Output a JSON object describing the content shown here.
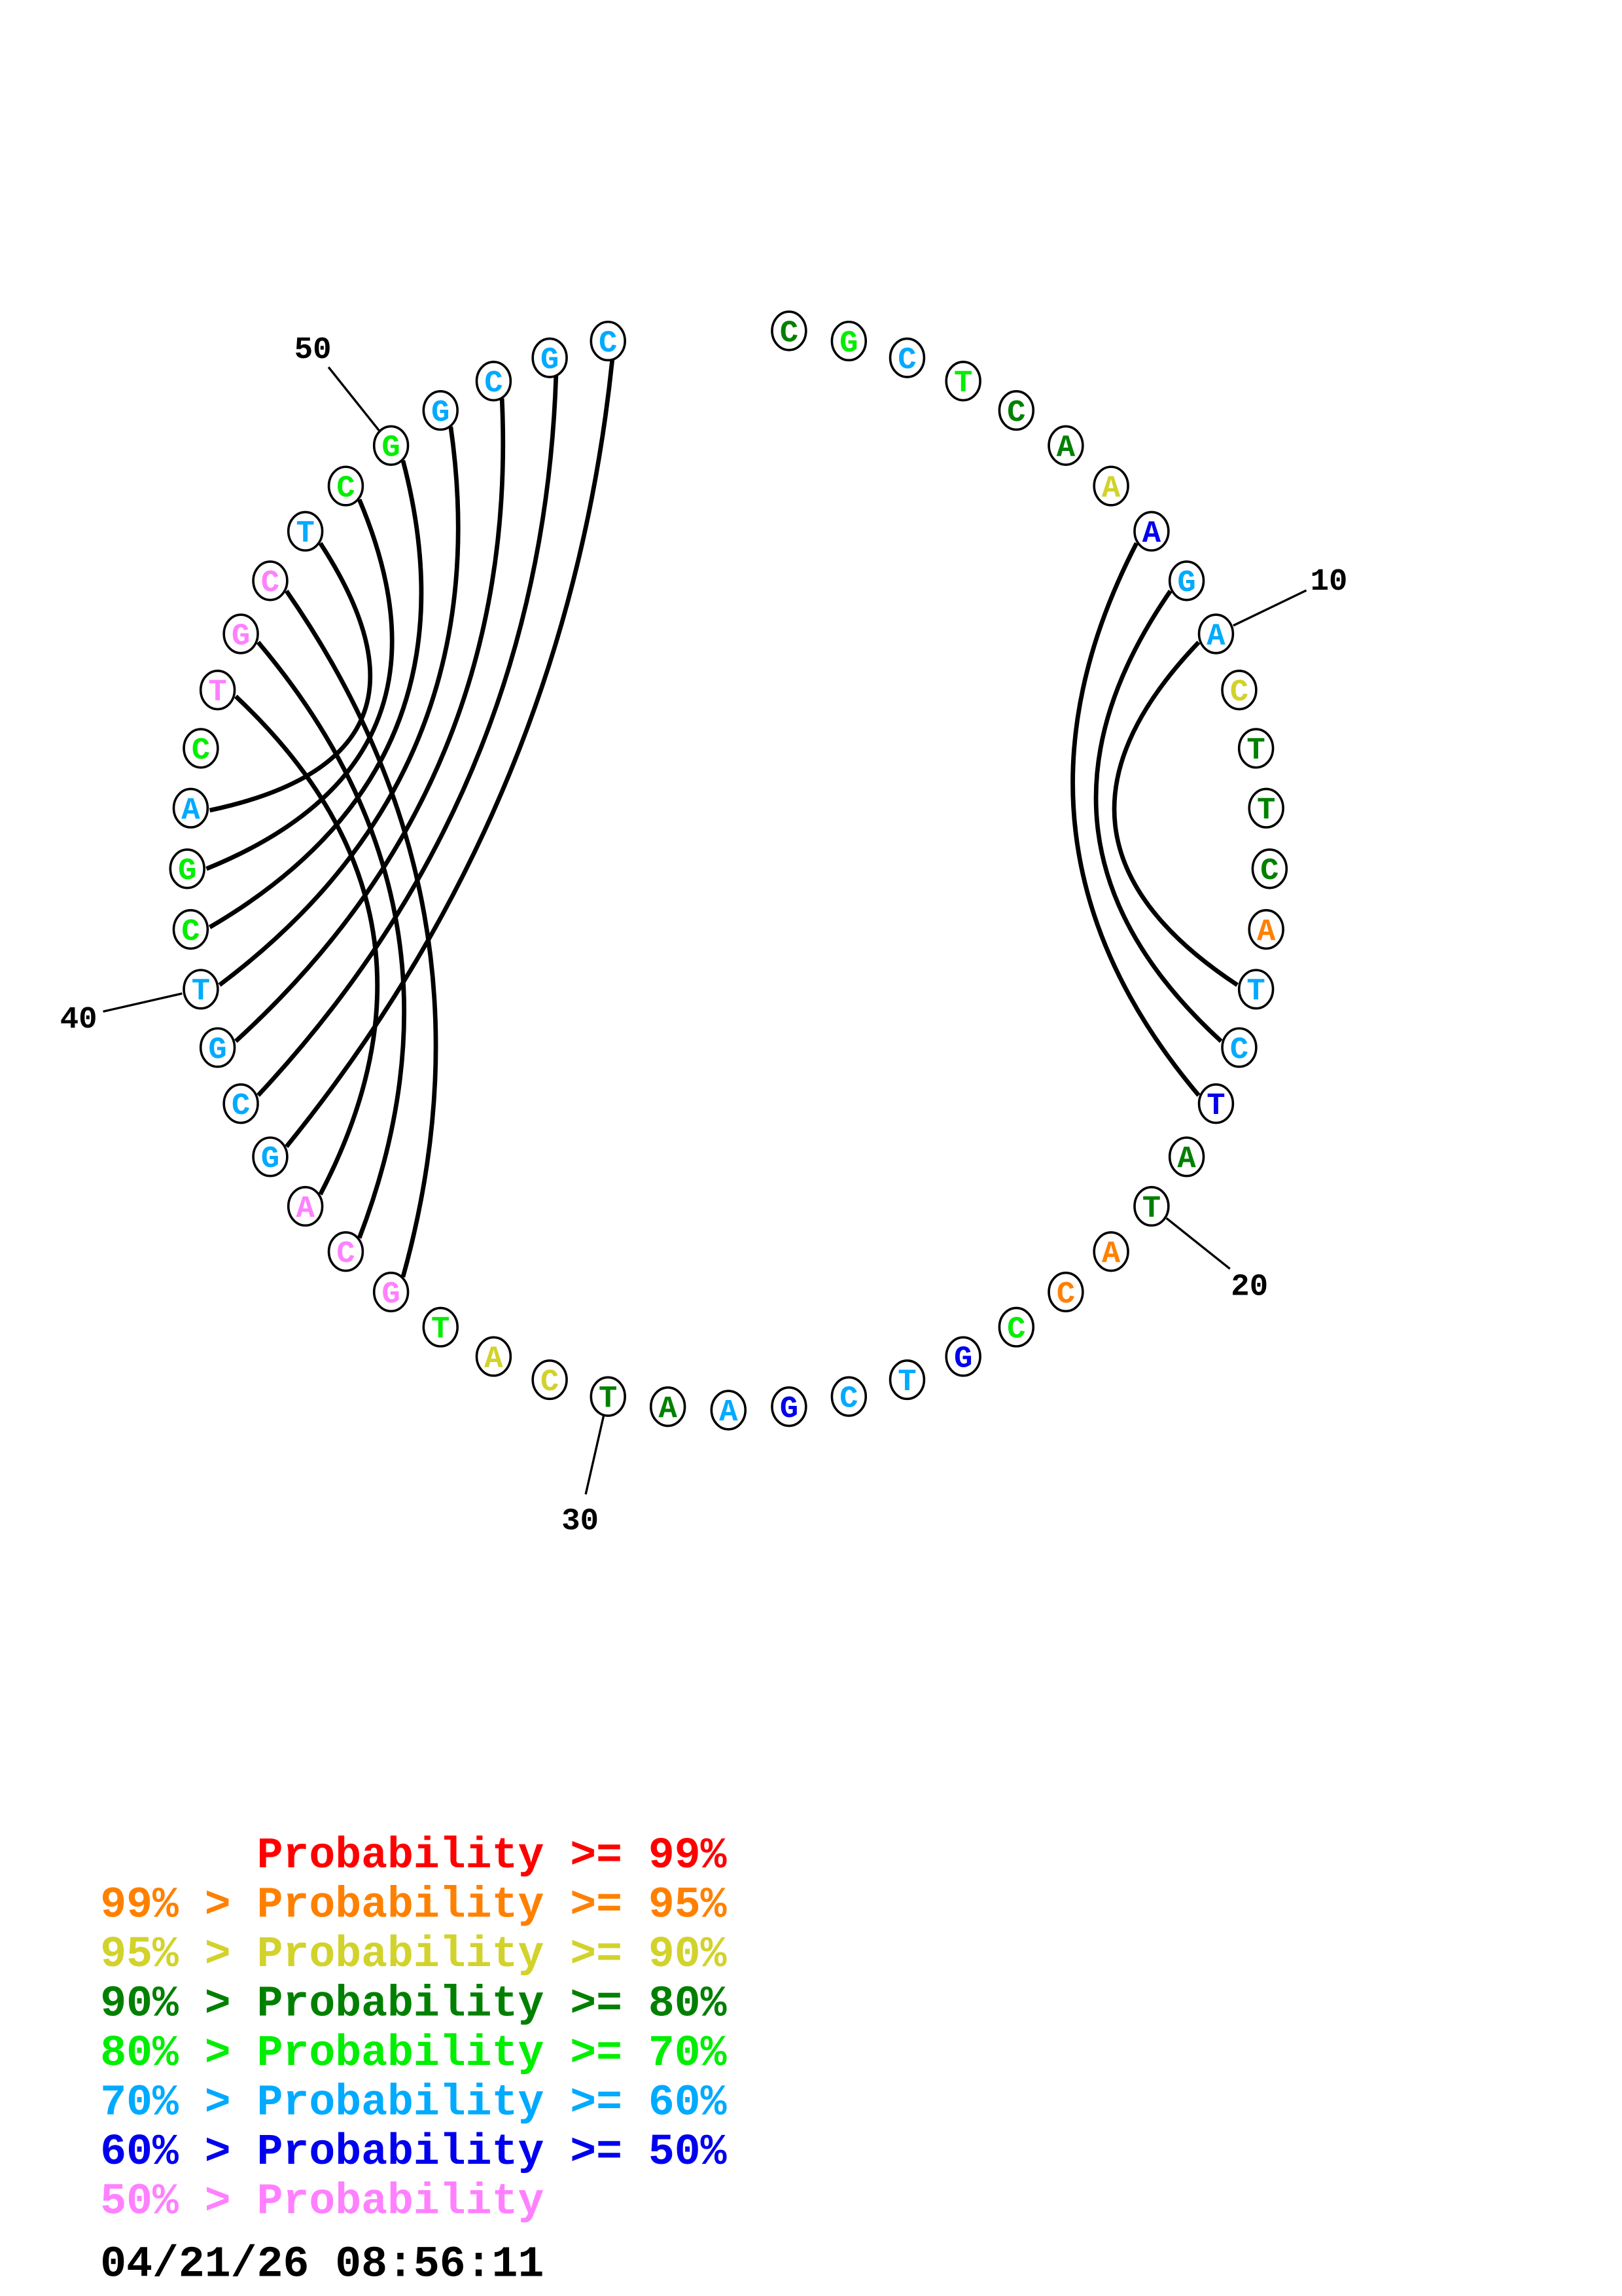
{
  "colors": {
    "p99": "#ff0000",
    "p95": "#ff8000",
    "p90": "#d2d22c",
    "p80": "#008000",
    "p70": "#00ee00",
    "p60": "#00aaff",
    "p50": "#0000ee",
    "plow": "#ff80ff"
  },
  "sequence": [
    {
      "n": "C",
      "p": "p80"
    },
    {
      "n": "G",
      "p": "p70"
    },
    {
      "n": "C",
      "p": "p60"
    },
    {
      "n": "T",
      "p": "p70"
    },
    {
      "n": "C",
      "p": "p80"
    },
    {
      "n": "A",
      "p": "p80"
    },
    {
      "n": "A",
      "p": "p90"
    },
    {
      "n": "A",
      "p": "p50"
    },
    {
      "n": "G",
      "p": "p60"
    },
    {
      "n": "A",
      "p": "p60"
    },
    {
      "n": "C",
      "p": "p90"
    },
    {
      "n": "T",
      "p": "p80"
    },
    {
      "n": "T",
      "p": "p80"
    },
    {
      "n": "C",
      "p": "p80"
    },
    {
      "n": "A",
      "p": "p95"
    },
    {
      "n": "T",
      "p": "p60"
    },
    {
      "n": "C",
      "p": "p60"
    },
    {
      "n": "T",
      "p": "p50"
    },
    {
      "n": "A",
      "p": "p80"
    },
    {
      "n": "T",
      "p": "p80"
    },
    {
      "n": "A",
      "p": "p95"
    },
    {
      "n": "C",
      "p": "p95"
    },
    {
      "n": "C",
      "p": "p70"
    },
    {
      "n": "G",
      "p": "p50"
    },
    {
      "n": "T",
      "p": "p60"
    },
    {
      "n": "C",
      "p": "p60"
    },
    {
      "n": "G",
      "p": "p50"
    },
    {
      "n": "A",
      "p": "p60"
    },
    {
      "n": "A",
      "p": "p80"
    },
    {
      "n": "T",
      "p": "p80"
    },
    {
      "n": "C",
      "p": "p90"
    },
    {
      "n": "A",
      "p": "p90"
    },
    {
      "n": "T",
      "p": "p70"
    },
    {
      "n": "G",
      "p": "plow"
    },
    {
      "n": "C",
      "p": "plow"
    },
    {
      "n": "A",
      "p": "plow"
    },
    {
      "n": "G",
      "p": "p60"
    },
    {
      "n": "C",
      "p": "p60"
    },
    {
      "n": "G",
      "p": "p60"
    },
    {
      "n": "T",
      "p": "p60"
    },
    {
      "n": "C",
      "p": "p70"
    },
    {
      "n": "G",
      "p": "p70"
    },
    {
      "n": "A",
      "p": "p60"
    },
    {
      "n": "C",
      "p": "p70"
    },
    {
      "n": "T",
      "p": "plow"
    },
    {
      "n": "G",
      "p": "plow"
    },
    {
      "n": "C",
      "p": "plow"
    },
    {
      "n": "T",
      "p": "p60"
    },
    {
      "n": "C",
      "p": "p70"
    },
    {
      "n": "G",
      "p": "p70"
    },
    {
      "n": "G",
      "p": "p60"
    },
    {
      "n": "C",
      "p": "p60"
    },
    {
      "n": "G",
      "p": "p60"
    },
    {
      "n": "C",
      "p": "p60"
    }
  ],
  "pairs": [
    [
      8,
      18
    ],
    [
      9,
      17
    ],
    [
      10,
      16
    ],
    [
      54,
      37
    ],
    [
      53,
      38
    ],
    [
      52,
      39
    ],
    [
      51,
      40
    ],
    [
      50,
      41
    ],
    [
      49,
      42
    ],
    [
      48,
      43
    ],
    [
      47,
      34
    ],
    [
      46,
      35
    ],
    [
      45,
      36
    ]
  ],
  "position_labels": [
    {
      "index": 10,
      "text": "10"
    },
    {
      "index": 20,
      "text": "20"
    },
    {
      "index": 30,
      "text": "30"
    },
    {
      "index": 40,
      "text": "40"
    },
    {
      "index": 50,
      "text": "50"
    }
  ],
  "legend": [
    {
      "text": "      Probability >= 99%",
      "p": "p99"
    },
    {
      "text": "99% > Probability >= 95%",
      "p": "p95"
    },
    {
      "text": "95% > Probability >= 90%",
      "p": "p90"
    },
    {
      "text": "90% > Probability >= 80%",
      "p": "p80"
    },
    {
      "text": "80% > Probability >= 70%",
      "p": "p70"
    },
    {
      "text": "70% > Probability >= 60%",
      "p": "p60"
    },
    {
      "text": "60% > Probability >= 50%",
      "p": "p50"
    },
    {
      "text": "50% > Probability",
      "p": "plow"
    }
  ],
  "timestamp": "04/21/26 08:56:11"
}
